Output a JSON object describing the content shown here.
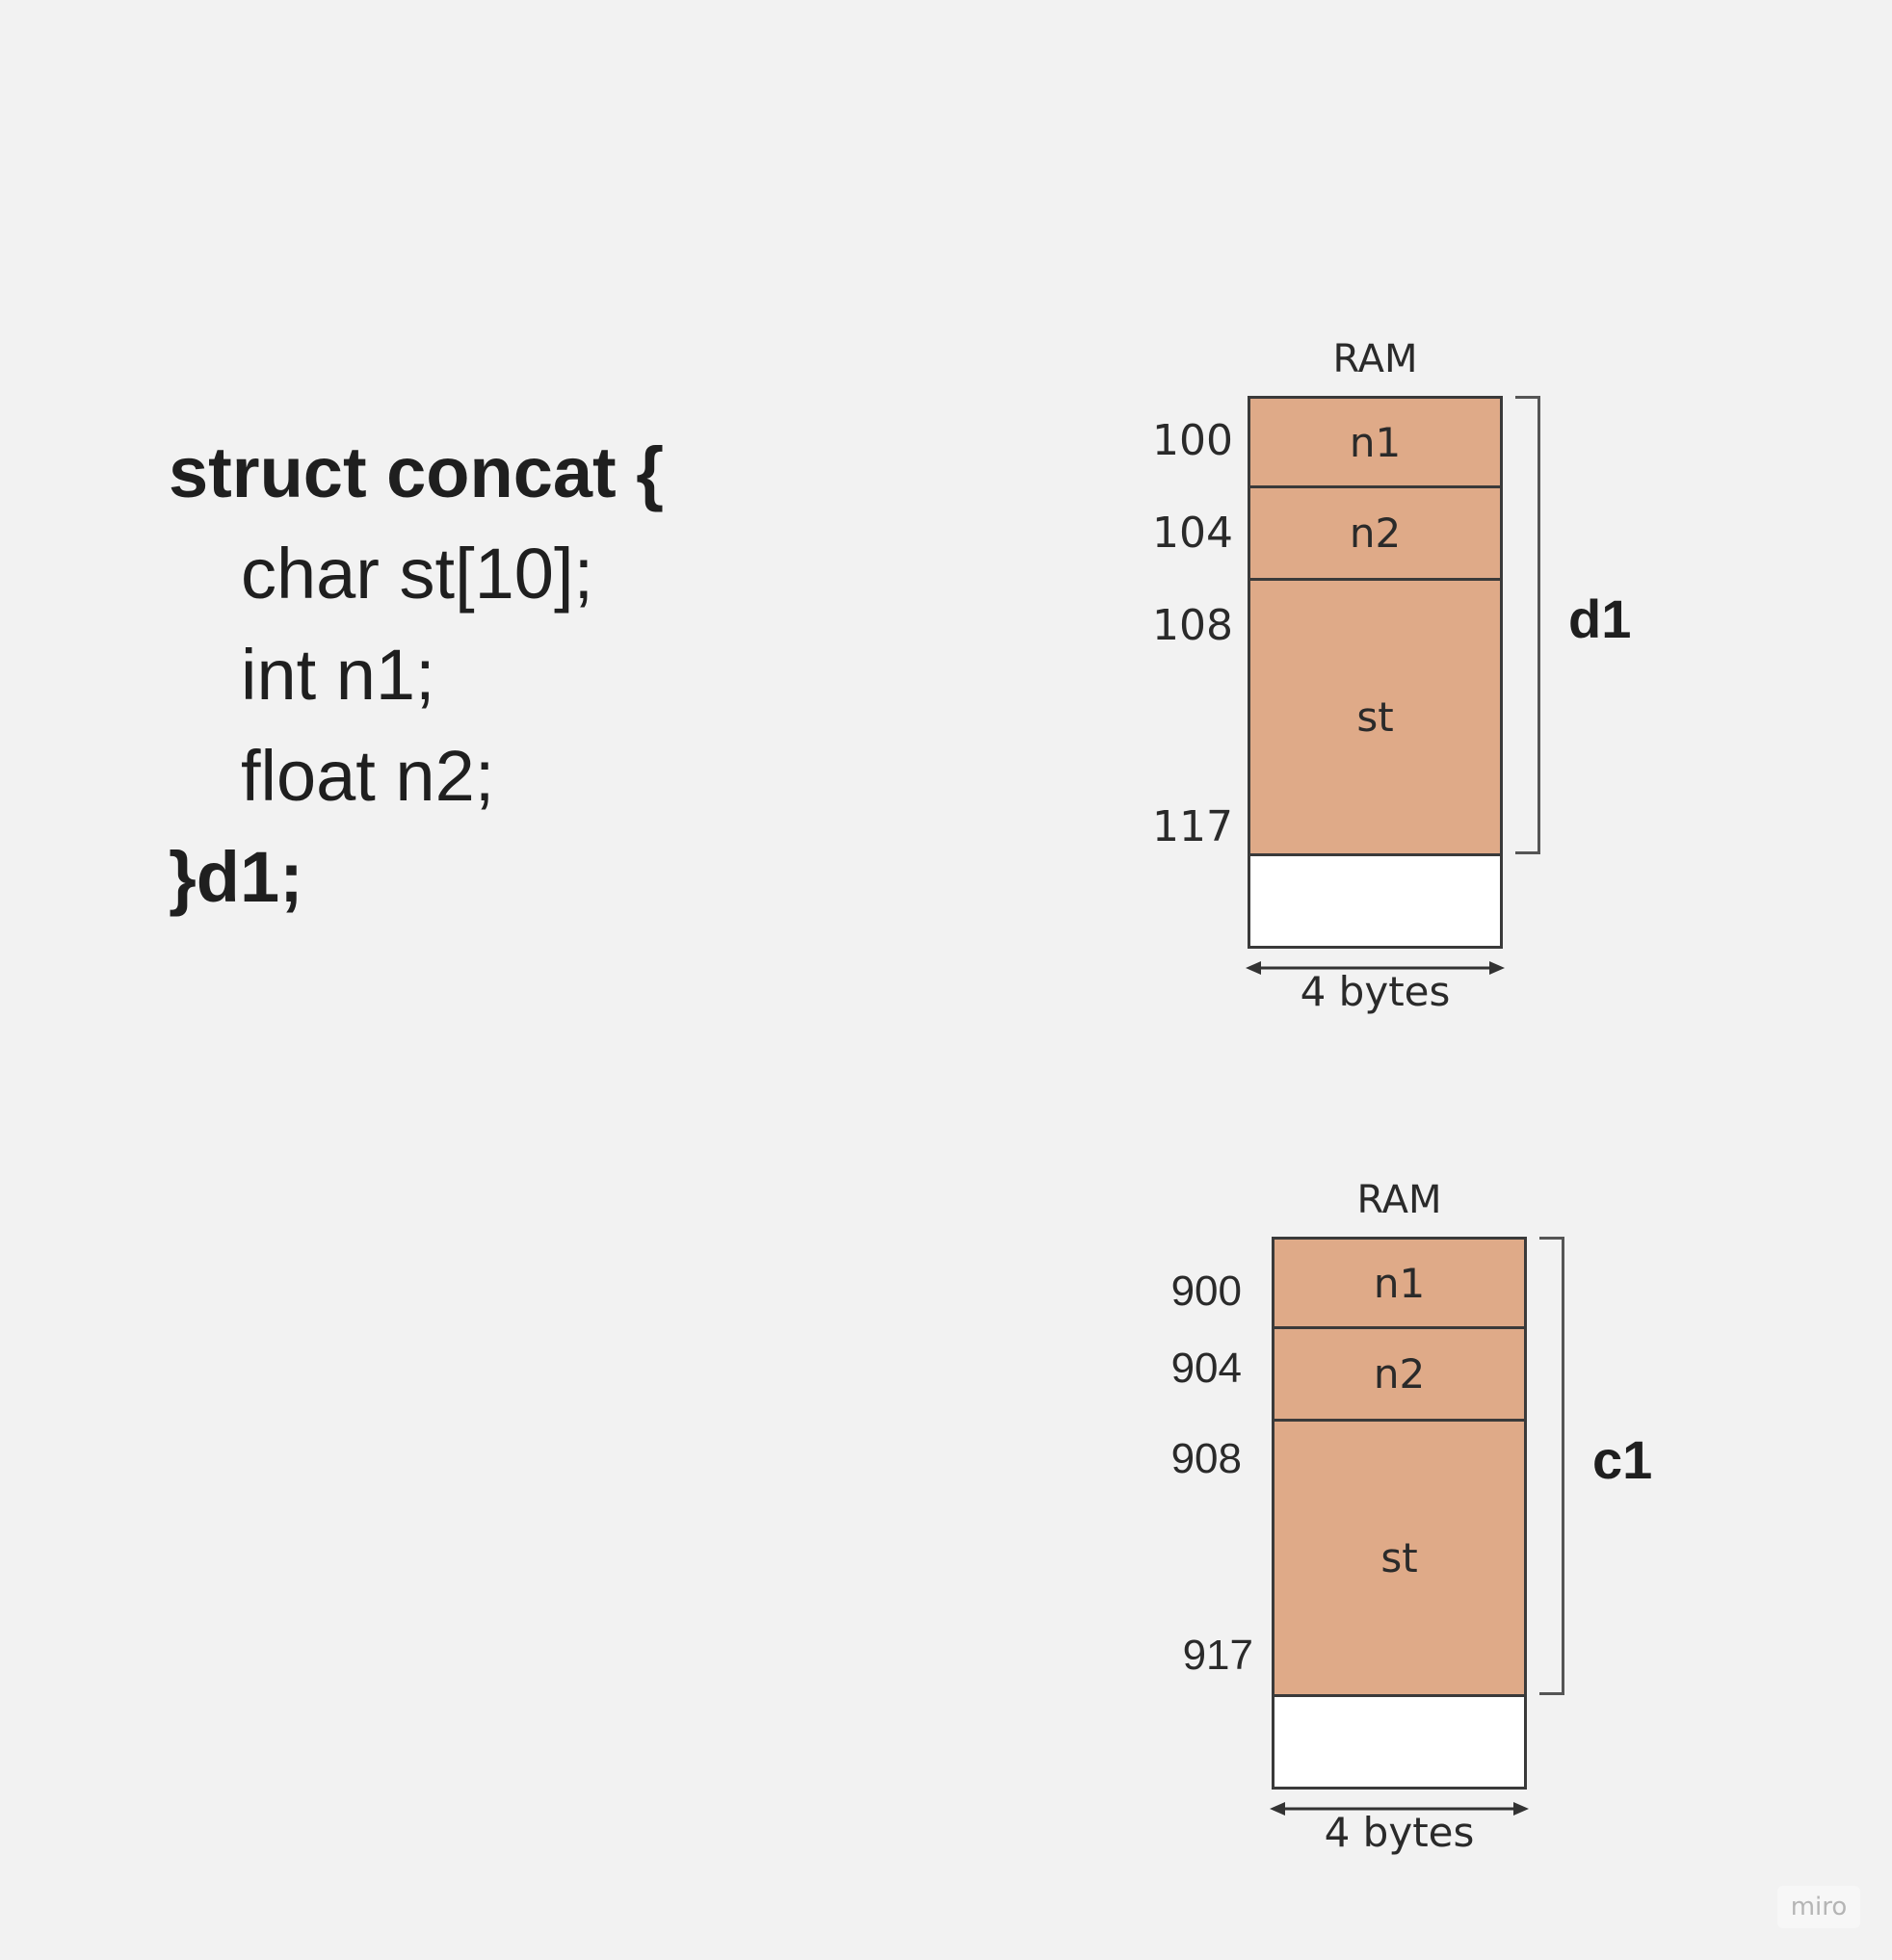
{
  "code": {
    "line1": "struct concat {",
    "line2": "char st[10];",
    "line3": "int n1;",
    "line4": "float n2;",
    "line5": "}d1;"
  },
  "diagram_d1": {
    "ram_label": "RAM",
    "cells": {
      "n1": "n1",
      "n2": "n2",
      "st": "st"
    },
    "addresses": [
      "100",
      "104",
      "108",
      "117"
    ],
    "variable": "d1",
    "width_label": "4 bytes"
  },
  "diagram_c1": {
    "ram_label": "RAM",
    "cells": {
      "n1": "n1",
      "n2": "n2",
      "st": "st"
    },
    "addresses": [
      "900",
      "904",
      "908",
      "917"
    ],
    "variable": "c1",
    "width_label": "4 bytes"
  },
  "watermark": "miro",
  "colors": {
    "cell_fill": "#dfaa88",
    "background": "#f2f2f2"
  }
}
